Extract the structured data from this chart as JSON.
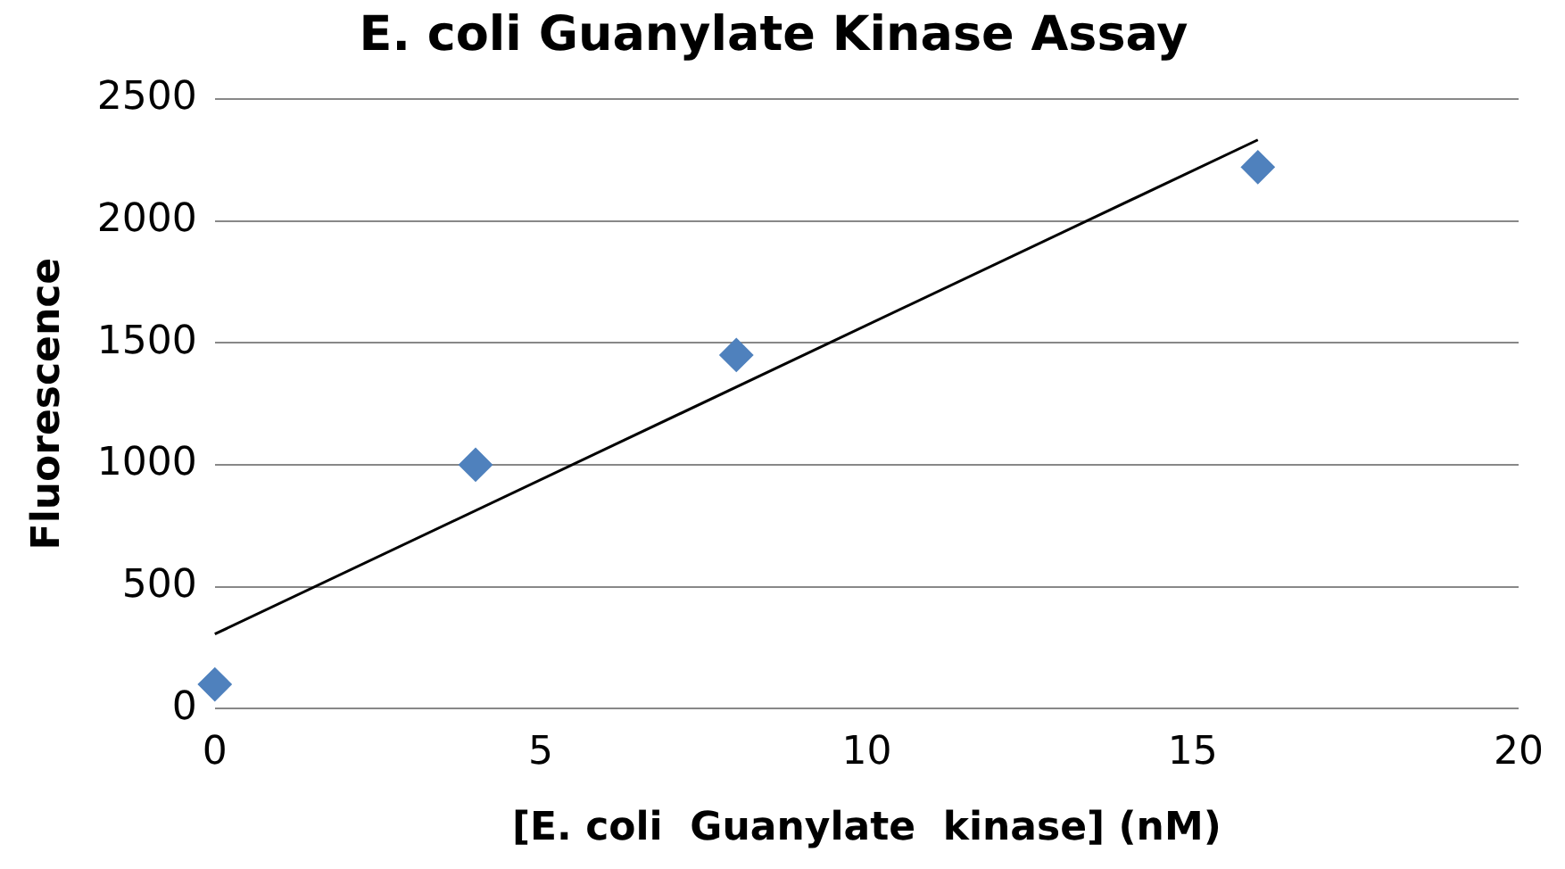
{
  "chart_data": {
    "type": "scatter",
    "title": "E. coli Guanylate Kinase Assay",
    "xlabel": "[E. coli  Guanylate  kinase] (nM)",
    "ylabel": "Fluorescence",
    "series": [
      {
        "type": "scatter",
        "color": "#4f81bd",
        "x": [
          0,
          4,
          8,
          16
        ],
        "values": [
          100,
          1000,
          1450,
          2220
        ]
      },
      {
        "type": "line",
        "color": "#000000",
        "x": [
          0,
          16
        ],
        "values": [
          306,
          2332
        ],
        "marker": "none"
      }
    ],
    "xlim": [
      0,
      20
    ],
    "xticks": [
      0,
      5,
      10,
      15,
      20
    ],
    "ylim": [
      0,
      2500
    ],
    "yticks": [
      0,
      500,
      1000,
      1500,
      2000,
      2500
    ],
    "grid": "y",
    "legend": false,
    "marker": "diamond",
    "line_style": "solid"
  }
}
